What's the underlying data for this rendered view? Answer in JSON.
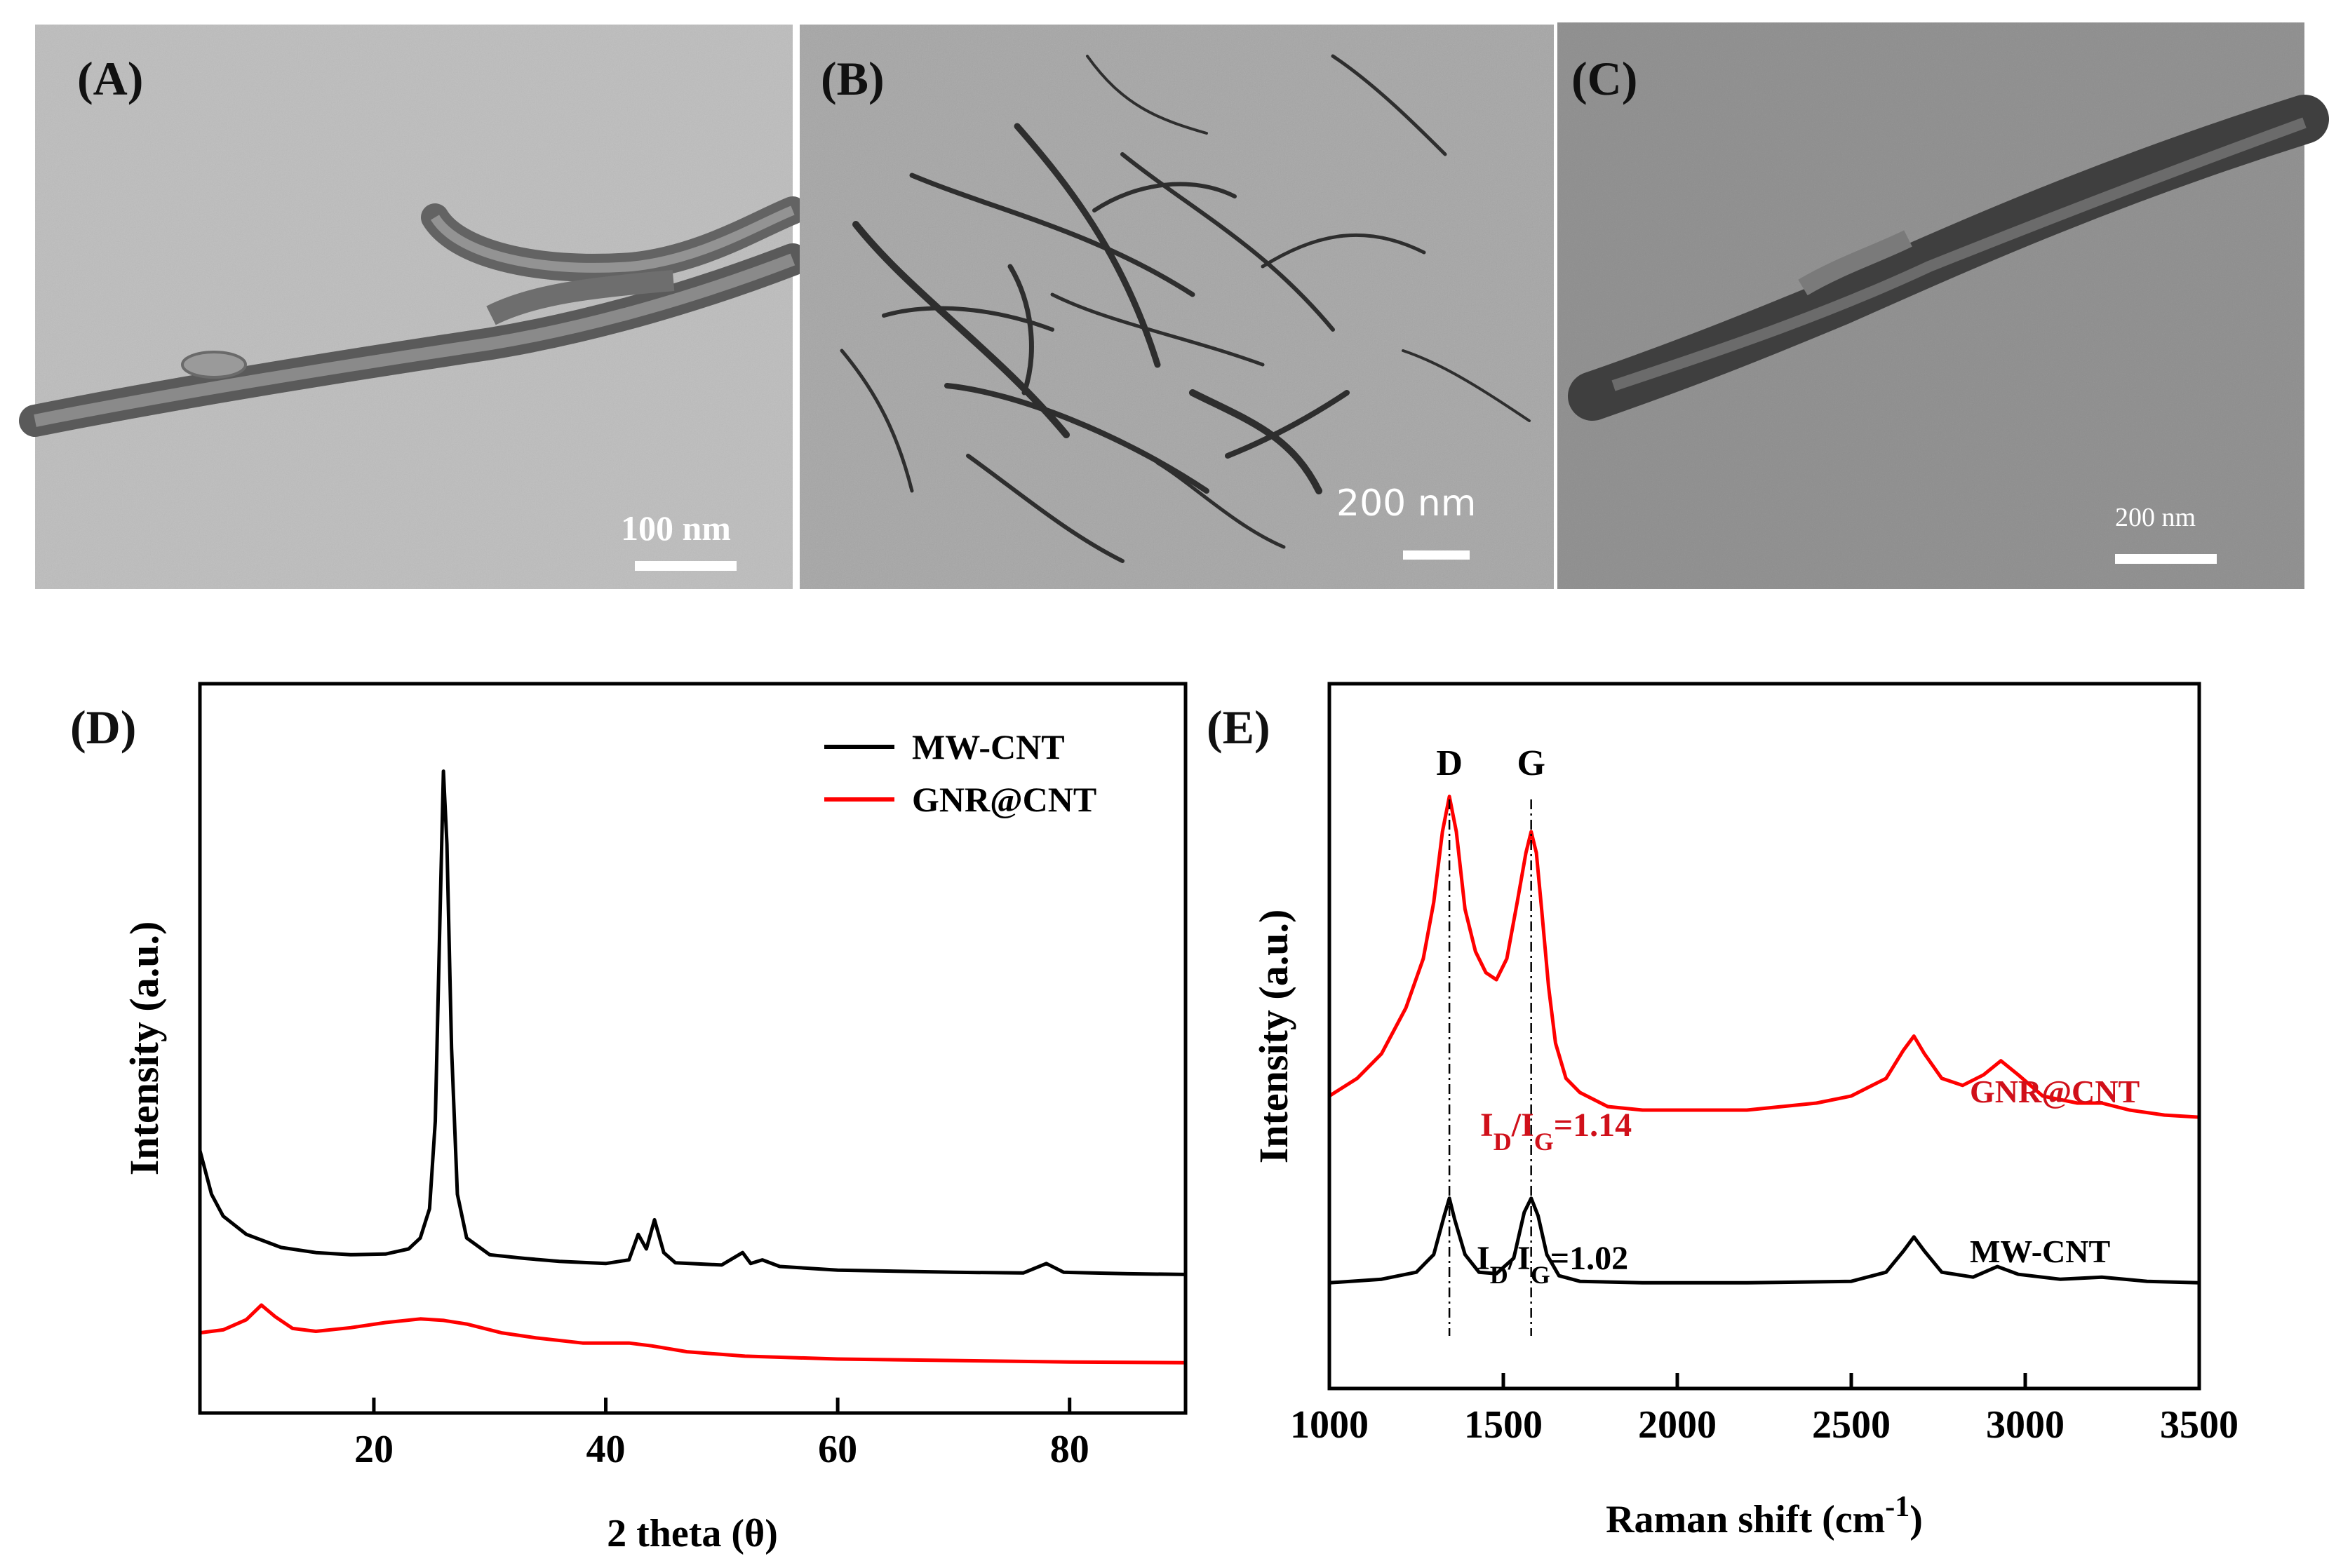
{
  "panels": {
    "A": {
      "label": "(A)",
      "scale": "100 nm"
    },
    "B": {
      "label": "(B)",
      "scale": "200 nm"
    },
    "C": {
      "label": "(C)",
      "scale": "200 nm"
    }
  },
  "colors": {
    "mwcnt": "#000000",
    "gnr": "#ff0000",
    "label_red": "#d0101a"
  },
  "chart_data": [
    {
      "panel": "(D)",
      "type": "line",
      "title": "",
      "xlabel": "2 theta (θ)",
      "ylabel": "Intensity (a.u.)",
      "xlim": [
        5,
        90
      ],
      "ylim": [
        0,
        100
      ],
      "xticks": [
        20,
        40,
        60,
        80
      ],
      "legend": {
        "placement": "top-right",
        "entries": [
          "MW-CNT",
          "GNR@CNT"
        ]
      },
      "series": [
        {
          "name": "MW-CNT",
          "color": "#000000",
          "points": [
            [
              5,
              36
            ],
            [
              6,
              30
            ],
            [
              7,
              27
            ],
            [
              9,
              24.5
            ],
            [
              12,
              22.7
            ],
            [
              15,
              22
            ],
            [
              18,
              21.7
            ],
            [
              21,
              21.8
            ],
            [
              23,
              22.5
            ],
            [
              24,
              24
            ],
            [
              24.8,
              28
            ],
            [
              25.3,
              40
            ],
            [
              25.7,
              68
            ],
            [
              26,
              88
            ],
            [
              26.3,
              78
            ],
            [
              26.7,
              50
            ],
            [
              27.2,
              30
            ],
            [
              28,
              24
            ],
            [
              30,
              21.7
            ],
            [
              33,
              21.2
            ],
            [
              36,
              20.8
            ],
            [
              40,
              20.5
            ],
            [
              42,
              21
            ],
            [
              42.8,
              24.5
            ],
            [
              43.5,
              22.5
            ],
            [
              44.2,
              26.5
            ],
            [
              45,
              22
            ],
            [
              46,
              20.6
            ],
            [
              50,
              20.3
            ],
            [
              51.8,
              22
            ],
            [
              52.5,
              20.5
            ],
            [
              53.5,
              21
            ],
            [
              55,
              20.1
            ],
            [
              60,
              19.6
            ],
            [
              70,
              19.3
            ],
            [
              76,
              19.2
            ],
            [
              78,
              20.5
            ],
            [
              79.5,
              19.3
            ],
            [
              85,
              19.1
            ],
            [
              90,
              19
            ]
          ]
        },
        {
          "name": "GNR@CNT",
          "color": "#ff0000",
          "points": [
            [
              5,
              11
            ],
            [
              7,
              11.4
            ],
            [
              9,
              12.8
            ],
            [
              10.3,
              14.8
            ],
            [
              11.5,
              13.2
            ],
            [
              13,
              11.6
            ],
            [
              15,
              11.2
            ],
            [
              18,
              11.7
            ],
            [
              21,
              12.4
            ],
            [
              24,
              12.9
            ],
            [
              26,
              12.7
            ],
            [
              28,
              12.2
            ],
            [
              31,
              11
            ],
            [
              34,
              10.3
            ],
            [
              38,
              9.6
            ],
            [
              42,
              9.6
            ],
            [
              44,
              9.2
            ],
            [
              47,
              8.4
            ],
            [
              52,
              7.8
            ],
            [
              60,
              7.4
            ],
            [
              70,
              7.2
            ],
            [
              80,
              7
            ],
            [
              90,
              6.9
            ]
          ]
        }
      ]
    },
    {
      "panel": "(E)",
      "type": "line",
      "title": "",
      "xlabel": "Raman shift (cm",
      "xlabel_sup": "-1",
      "xlabel_end": ")",
      "ylabel": "Intensity (a.u.)",
      "xlim": [
        1000,
        3500
      ],
      "ylim": [
        0,
        100
      ],
      "xticks": [
        1000,
        1500,
        2000,
        2500,
        3000,
        3500
      ],
      "peak_markers": [
        {
          "label": "D",
          "x": 1345
        },
        {
          "label": "G",
          "x": 1580
        }
      ],
      "annotations": {
        "gnr_ratio": {
          "I": "I",
          "D": "D",
          "slash": "/I",
          "G": "G",
          "value": "=1.14"
        },
        "mw_ratio": {
          "I": "I",
          "D": "D",
          "slash": "/I",
          "G": "G",
          "value": "=1.02"
        },
        "gnr_name": "GNR@CNT",
        "mw_name": "MW-CNT"
      },
      "series": [
        {
          "name": "GNR@CNT",
          "color": "#ff0000",
          "points": [
            [
              1000,
              41.5
            ],
            [
              1080,
              44
            ],
            [
              1150,
              47.5
            ],
            [
              1220,
              54
            ],
            [
              1270,
              61
            ],
            [
              1300,
              69
            ],
            [
              1325,
              79
            ],
            [
              1345,
              84
            ],
            [
              1365,
              79
            ],
            [
              1390,
              68
            ],
            [
              1420,
              62
            ],
            [
              1450,
              59
            ],
            [
              1480,
              58
            ],
            [
              1510,
              61
            ],
            [
              1540,
              69
            ],
            [
              1565,
              76
            ],
            [
              1580,
              79
            ],
            [
              1595,
              76
            ],
            [
              1610,
              68
            ],
            [
              1630,
              57
            ],
            [
              1650,
              49
            ],
            [
              1680,
              44
            ],
            [
              1720,
              42
            ],
            [
              1800,
              40
            ],
            [
              1900,
              39.5
            ],
            [
              2000,
              39.5
            ],
            [
              2100,
              39.5
            ],
            [
              2200,
              39.5
            ],
            [
              2300,
              40
            ],
            [
              2400,
              40.5
            ],
            [
              2500,
              41.5
            ],
            [
              2600,
              44
            ],
            [
              2650,
              48
            ],
            [
              2680,
              50
            ],
            [
              2710,
              47.5
            ],
            [
              2760,
              44
            ],
            [
              2820,
              43
            ],
            [
              2880,
              44.5
            ],
            [
              2930,
              46.5
            ],
            [
              2980,
              44.5
            ],
            [
              3050,
              41.5
            ],
            [
              3150,
              40.5
            ],
            [
              3220,
              40.5
            ],
            [
              3300,
              39.5
            ],
            [
              3400,
              38.8
            ],
            [
              3500,
              38.5
            ]
          ]
        },
        {
          "name": "MW-CNT",
          "color": "#000000",
          "points": [
            [
              1000,
              15
            ],
            [
              1150,
              15.5
            ],
            [
              1250,
              16.5
            ],
            [
              1300,
              19
            ],
            [
              1330,
              24.5
            ],
            [
              1345,
              27
            ],
            [
              1360,
              24
            ],
            [
              1390,
              19
            ],
            [
              1430,
              16.5
            ],
            [
              1480,
              16.3
            ],
            [
              1530,
              18.5
            ],
            [
              1560,
              25
            ],
            [
              1580,
              27
            ],
            [
              1600,
              24.5
            ],
            [
              1625,
              19
            ],
            [
              1660,
              16
            ],
            [
              1720,
              15.2
            ],
            [
              1900,
              15
            ],
            [
              2200,
              15
            ],
            [
              2500,
              15.2
            ],
            [
              2600,
              16.5
            ],
            [
              2650,
              19.5
            ],
            [
              2680,
              21.5
            ],
            [
              2710,
              19.5
            ],
            [
              2760,
              16.5
            ],
            [
              2850,
              15.8
            ],
            [
              2920,
              17.3
            ],
            [
              2980,
              16.2
            ],
            [
              3100,
              15.5
            ],
            [
              3220,
              15.8
            ],
            [
              3350,
              15.2
            ],
            [
              3500,
              15
            ]
          ]
        }
      ]
    }
  ]
}
